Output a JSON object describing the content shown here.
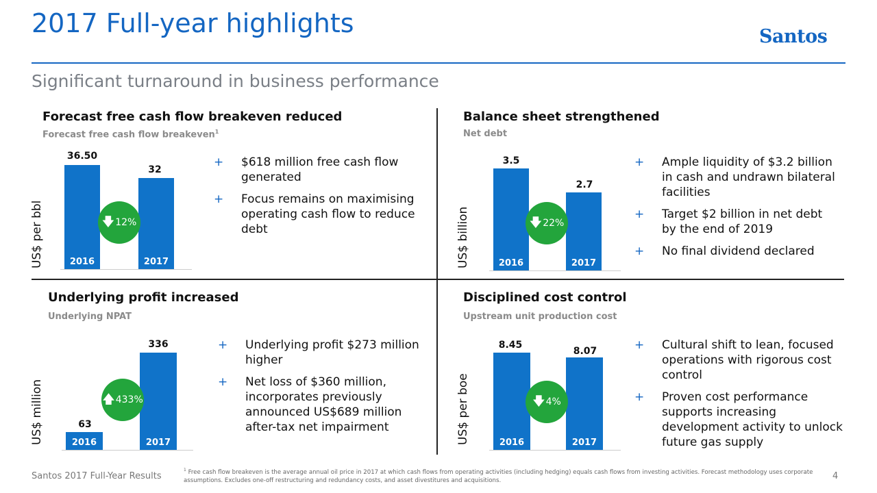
{
  "header": {
    "title": "2017 Full-year highlights",
    "subtitle": "Significant turnaround in business performance",
    "logo": "Santos"
  },
  "colors": {
    "accent": "#1466c2",
    "bar": "#1073c9",
    "badge": "#23a53c"
  },
  "quadrants": {
    "fcf": {
      "heading": "Forecast free cash flow breakeven reduced",
      "label": "Forecast free cash flow breakeven",
      "label_sup": "1",
      "ylabel": "US$ per bbl",
      "bars": [
        {
          "year": "2016",
          "value": "36.50"
        },
        {
          "year": "2017",
          "value": "32"
        }
      ],
      "change_icon": "arrow-down-icon",
      "change": "12%",
      "bullets": [
        "$618 million free cash flow generated",
        "Focus remains on maximising operating cash flow to reduce debt"
      ]
    },
    "debt": {
      "heading": "Balance sheet strengthened",
      "label": "Net debt",
      "ylabel": "US$ billion",
      "bars": [
        {
          "year": "2016",
          "value": "3.5"
        },
        {
          "year": "2017",
          "value": "2.7"
        }
      ],
      "change_icon": "arrow-down-icon",
      "change": "22%",
      "bullets": [
        "Ample liquidity of $3.2 billion in cash and undrawn bilateral facilities",
        "Target $2 billion in net debt by the end of 2019",
        "No final dividend declared"
      ]
    },
    "profit": {
      "heading": "Underlying profit increased",
      "label": "Underlying NPAT",
      "ylabel": "US$ million",
      "bars": [
        {
          "year": "2016",
          "value": "63"
        },
        {
          "year": "2017",
          "value": "336"
        }
      ],
      "change_icon": "arrow-up-icon",
      "change": "433%",
      "bullets": [
        "Underlying profit $273 million higher",
        "Net loss of $360 million, incorporates previously announced US$689 million after-tax net impairment"
      ]
    },
    "cost": {
      "heading": "Disciplined cost control",
      "label": "Upstream unit production cost",
      "ylabel": "US$ per boe",
      "bars": [
        {
          "year": "2016",
          "value": "8.45"
        },
        {
          "year": "2017",
          "value": "8.07"
        }
      ],
      "change_icon": "arrow-down-icon",
      "change": "4%",
      "bullets": [
        "Cultural shift to lean, focused operations with rigorous cost control",
        "Proven cost performance supports increasing development activity to unlock future gas supply"
      ]
    }
  },
  "footer": {
    "left": "Santos 2017 Full-Year Results",
    "footnote_sup": "1",
    "footnote": "Free cash flow breakeven is the average annual oil price in 2017 at which cash flows from operating activities (including hedging) equals cash flows from investing activities. Forecast methodology uses corporate assumptions. Excludes one-off restructuring and redundancy costs, and asset divestitures and acquisitions.",
    "page": "4"
  }
}
